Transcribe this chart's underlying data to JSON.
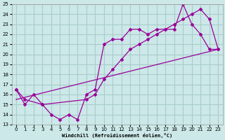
{
  "xlabel": "Windchill (Refroidissement éolien,°C)",
  "bg_color": "#cce8e8",
  "line_color": "#990099",
  "grid_color": "#aacccc",
  "xlim": [
    -0.5,
    23.5
  ],
  "ylim": [
    13,
    25
  ],
  "xticks": [
    0,
    1,
    2,
    3,
    4,
    5,
    6,
    7,
    8,
    9,
    10,
    11,
    12,
    13,
    14,
    15,
    16,
    17,
    18,
    19,
    20,
    21,
    22,
    23
  ],
  "yticks": [
    13,
    14,
    15,
    16,
    17,
    18,
    19,
    20,
    21,
    22,
    23,
    24,
    25
  ],
  "line1_x": [
    0,
    1,
    2,
    3,
    4,
    5,
    6,
    7,
    8,
    9,
    10,
    11,
    12,
    13,
    14,
    15,
    16,
    17,
    18,
    19,
    20,
    21,
    22,
    23
  ],
  "line1_y": [
    16.5,
    15.0,
    16.0,
    15.0,
    14.0,
    13.5,
    14.0,
    13.5,
    16.0,
    16.5,
    21.0,
    21.5,
    21.5,
    22.5,
    22.5,
    22.0,
    22.5,
    22.5,
    22.5,
    25.0,
    23.0,
    22.0,
    20.5,
    20.5
  ],
  "line2_x": [
    0,
    1,
    3,
    8,
    9,
    10,
    11,
    12,
    13,
    14,
    15,
    16,
    17,
    18,
    19,
    20,
    21,
    22,
    23
  ],
  "line2_y": [
    16.5,
    15.5,
    15.0,
    15.5,
    16.0,
    17.5,
    18.5,
    19.5,
    20.5,
    21.0,
    21.5,
    22.0,
    22.5,
    23.0,
    23.5,
    24.0,
    24.5,
    23.5,
    20.5
  ],
  "line3_x": [
    0,
    23
  ],
  "line3_y": [
    15.5,
    20.5
  ]
}
